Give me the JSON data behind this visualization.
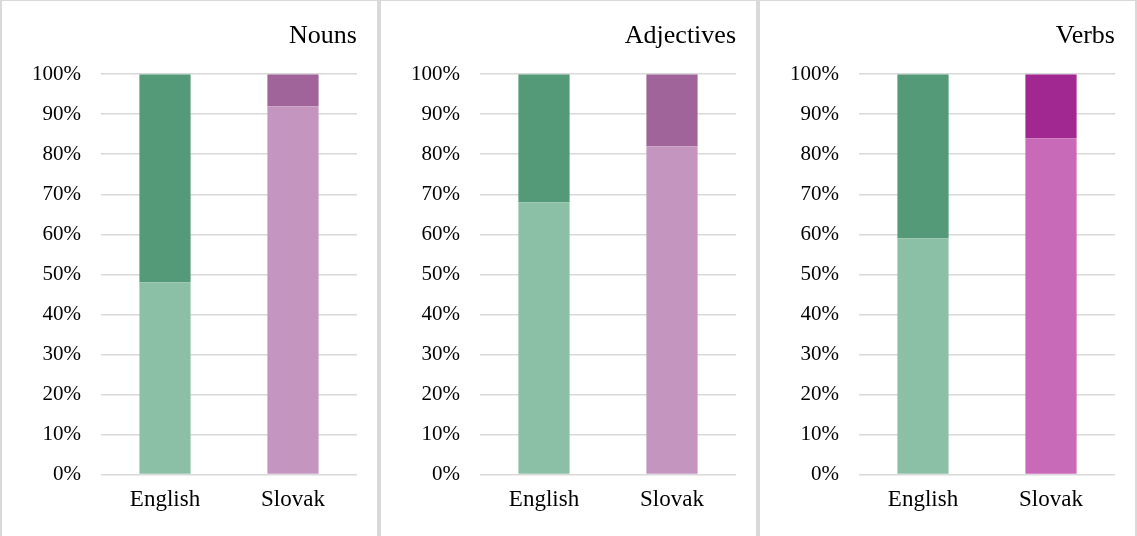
{
  "chart_data": [
    {
      "type": "bar",
      "title": "Nouns",
      "categories": [
        "English",
        "Slovak"
      ],
      "stacked": true,
      "ylim": [
        0,
        100
      ],
      "yticks": [
        {
          "value": 0,
          "label": "0%"
        },
        {
          "value": 10,
          "label": "10%"
        },
        {
          "value": 20,
          "label": "20%"
        },
        {
          "value": 30,
          "label": "30%"
        },
        {
          "value": 40,
          "label": "40%"
        },
        {
          "value": 50,
          "label": "50%"
        },
        {
          "value": 60,
          "label": "60%"
        },
        {
          "value": 70,
          "label": "70%"
        },
        {
          "value": 80,
          "label": "80%"
        },
        {
          "value": 90,
          "label": "90%"
        },
        {
          "value": 100,
          "label": "100%"
        }
      ],
      "grid": "y",
      "legend": false,
      "series": [
        {
          "colors": [
            "#8cc0a6",
            "#c496bf"
          ],
          "values": [
            48,
            92
          ]
        },
        {
          "colors": [
            "#559a78",
            "#a0649a"
          ],
          "values": [
            52,
            8
          ]
        }
      ]
    },
    {
      "type": "bar",
      "title": "Adjectives",
      "categories": [
        "English",
        "Slovak"
      ],
      "stacked": true,
      "ylim": [
        0,
        100
      ],
      "yticks": [
        {
          "value": 0,
          "label": "0%"
        },
        {
          "value": 10,
          "label": "10%"
        },
        {
          "value": 20,
          "label": "20%"
        },
        {
          "value": 30,
          "label": "30%"
        },
        {
          "value": 40,
          "label": "40%"
        },
        {
          "value": 50,
          "label": "50%"
        },
        {
          "value": 60,
          "label": "60%"
        },
        {
          "value": 70,
          "label": "70%"
        },
        {
          "value": 80,
          "label": "80%"
        },
        {
          "value": 90,
          "label": "90%"
        },
        {
          "value": 100,
          "label": "100%"
        }
      ],
      "grid": "y",
      "legend": false,
      "series": [
        {
          "colors": [
            "#8cc0a6",
            "#c496bf"
          ],
          "values": [
            68,
            82
          ]
        },
        {
          "colors": [
            "#559a78",
            "#a0649a"
          ],
          "values": [
            32,
            18
          ]
        }
      ]
    },
    {
      "type": "bar",
      "title": "Verbs",
      "categories": [
        "English",
        "Slovak"
      ],
      "stacked": true,
      "ylim": [
        0,
        100
      ],
      "yticks": [
        {
          "value": 0,
          "label": "0%"
        },
        {
          "value": 10,
          "label": "10%"
        },
        {
          "value": 20,
          "label": "20%"
        },
        {
          "value": 30,
          "label": "30%"
        },
        {
          "value": 40,
          "label": "40%"
        },
        {
          "value": 50,
          "label": "50%"
        },
        {
          "value": 60,
          "label": "60%"
        },
        {
          "value": 70,
          "label": "70%"
        },
        {
          "value": 80,
          "label": "80%"
        },
        {
          "value": 90,
          "label": "90%"
        },
        {
          "value": 100,
          "label": "100%"
        }
      ],
      "grid": "y",
      "legend": false,
      "series": [
        {
          "colors": [
            "#8cc0a6",
            "#c86ab8"
          ],
          "values": [
            59,
            84
          ]
        },
        {
          "colors": [
            "#559a78",
            "#a02890"
          ],
          "values": [
            41,
            16
          ]
        }
      ]
    }
  ]
}
